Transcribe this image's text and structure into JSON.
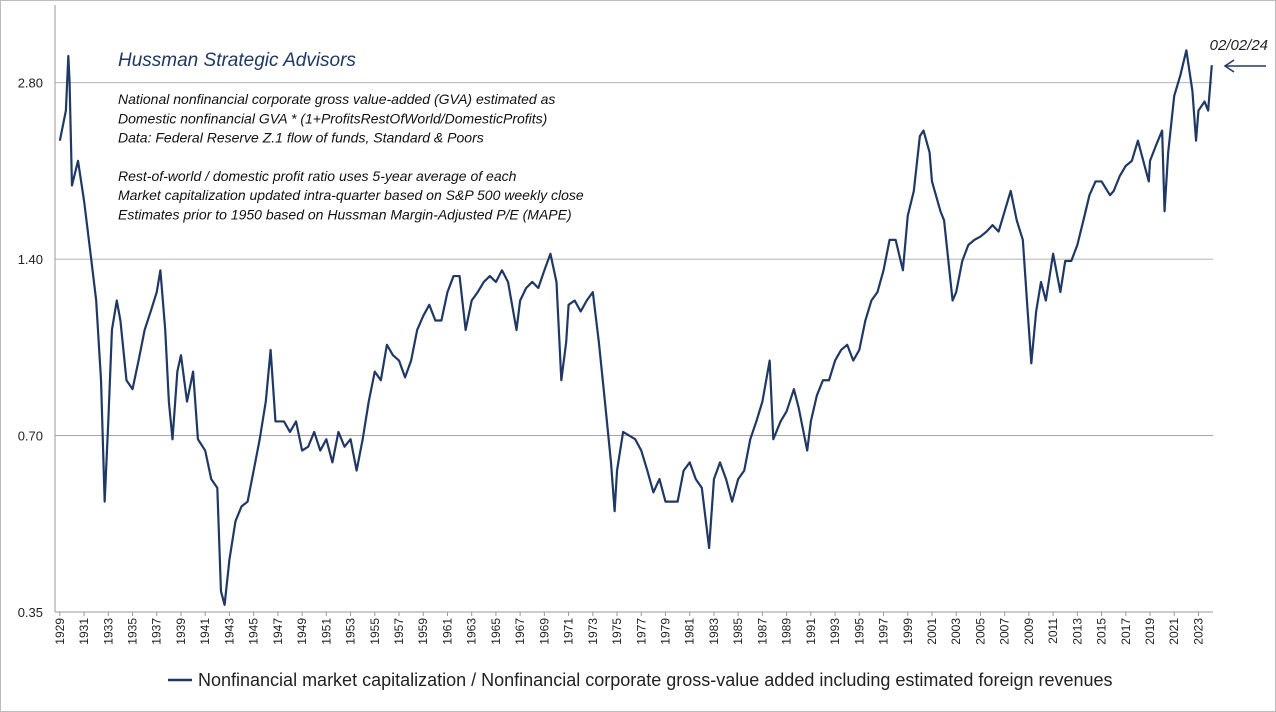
{
  "chart_data": {
    "type": "line",
    "title": "Hussman Strategic Advisors",
    "notes": [
      [
        "National nonfinancial corporate gross value-added (GVA) estimated as",
        "Domestic nonfinancial GVA * (1+ProfitsRestOfWorld/DomesticProfits)",
        "Data: Federal Reserve Z.1 flow of funds, Standard & Poors"
      ],
      [
        "Rest-of-world / domestic profit ratio uses 5-year average of each",
        "Market capitalization updated intra-quarter based on S&P 500 weekly close",
        "Estimates prior to 1950 based on Hussman Margin-Adjusted P/E (MAPE)"
      ]
    ],
    "end_label": "02/02/24",
    "yscale": "log",
    "grid": true,
    "ylim": [
      0.35,
      3.8
    ],
    "yticks": [
      0.35,
      {
        "value": 0.7,
        "label": "0.70"
      },
      {
        "value": 1.4,
        "label": "1.40"
      },
      {
        "value": 2.8,
        "label": "2.80"
      }
    ],
    "xlim": [
      1928.6,
      2024.2
    ],
    "xticks": [
      1929,
      1931,
      1933,
      1935,
      1937,
      1939,
      1941,
      1943,
      1945,
      1947,
      1949,
      1951,
      1953,
      1955,
      1957,
      1959,
      1961,
      1963,
      1965,
      1967,
      1969,
      1971,
      1973,
      1975,
      1977,
      1979,
      1981,
      1983,
      1985,
      1987,
      1989,
      1991,
      1993,
      1995,
      1997,
      1999,
      2001,
      2003,
      2005,
      2007,
      2009,
      2011,
      2013,
      2015,
      2017,
      2019,
      2021,
      2023
    ],
    "legend": "bottom",
    "x": [
      1929.0,
      1929.5,
      1929.7,
      1929.8,
      1930.0,
      1930.5,
      1931.0,
      1931.5,
      1932.0,
      1932.4,
      1932.7,
      1933.0,
      1933.3,
      1933.7,
      1934.0,
      1934.5,
      1935.0,
      1935.5,
      1936.0,
      1936.5,
      1937.0,
      1937.3,
      1937.7,
      1938.0,
      1938.3,
      1938.7,
      1939.0,
      1939.5,
      1940.0,
      1940.4,
      1941.0,
      1941.5,
      1942.0,
      1942.3,
      1942.6,
      1943.0,
      1943.5,
      1944.0,
      1944.5,
      1945.0,
      1945.5,
      1946.0,
      1946.4,
      1946.8,
      1947.5,
      1948.0,
      1948.5,
      1949.0,
      1949.5,
      1950.0,
      1950.5,
      1951.0,
      1951.5,
      1952.0,
      1952.5,
      1953.0,
      1953.5,
      1954.0,
      1954.5,
      1955.0,
      1955.5,
      1956.0,
      1956.5,
      1957.0,
      1957.5,
      1958.0,
      1958.5,
      1959.0,
      1959.5,
      1960.0,
      1960.5,
      1961.0,
      1961.5,
      1962.0,
      1962.5,
      1963.0,
      1963.5,
      1964.0,
      1964.5,
      1965.0,
      1965.5,
      1966.0,
      1966.7,
      1967.0,
      1967.5,
      1968.0,
      1968.5,
      1969.0,
      1969.5,
      1970.0,
      1970.4,
      1970.8,
      1971.0,
      1971.5,
      1972.0,
      1972.5,
      1973.0,
      1973.5,
      1974.0,
      1974.5,
      1974.8,
      1975.0,
      1975.5,
      1976.0,
      1976.5,
      1977.0,
      1977.5,
      1978.0,
      1978.5,
      1979.0,
      1979.5,
      1980.0,
      1980.5,
      1981.0,
      1981.5,
      1982.0,
      1982.6,
      1983.0,
      1983.5,
      1984.0,
      1984.5,
      1985.0,
      1985.5,
      1986.0,
      1986.5,
      1987.0,
      1987.6,
      1987.9,
      1988.5,
      1989.0,
      1989.6,
      1990.0,
      1990.7,
      1991.0,
      1991.5,
      1992.0,
      1992.5,
      1993.0,
      1993.5,
      1994.0,
      1994.5,
      1995.0,
      1995.5,
      1996.0,
      1996.5,
      1997.0,
      1997.5,
      1998.0,
      1998.6,
      1999.0,
      1999.5,
      2000.0,
      2000.3,
      2000.8,
      2001.0,
      2001.7,
      2002.0,
      2002.7,
      2003.0,
      2003.5,
      2004.0,
      2004.5,
      2005.0,
      2005.5,
      2006.0,
      2006.5,
      2007.0,
      2007.5,
      2008.0,
      2008.5,
      2008.9,
      2009.2,
      2009.6,
      2010.0,
      2010.4,
      2011.0,
      2011.6,
      2012.0,
      2012.5,
      2013.0,
      2013.5,
      2014.0,
      2014.5,
      2015.0,
      2015.7,
      2016.0,
      2016.5,
      2017.0,
      2017.5,
      2018.0,
      2018.9,
      2019.0,
      2019.5,
      2020.0,
      2020.2,
      2020.5,
      2021.0,
      2021.5,
      2022.0,
      2022.5,
      2022.8,
      2023.0,
      2023.5,
      2023.8,
      2024.1
    ],
    "series": [
      {
        "name": "Nonfinancial market capitalization / Nonfinancial corporate gross-value added including estimated foreign revenues",
        "color": "#203864",
        "values": [
          2.23,
          2.51,
          3.11,
          2.82,
          1.87,
          2.06,
          1.76,
          1.45,
          1.19,
          0.87,
          0.54,
          0.74,
          1.06,
          1.19,
          1.1,
          0.87,
          0.84,
          0.94,
          1.06,
          1.14,
          1.23,
          1.34,
          1.06,
          0.8,
          0.69,
          0.9,
          0.96,
          0.8,
          0.9,
          0.69,
          0.66,
          0.59,
          0.57,
          0.38,
          0.36,
          0.43,
          0.5,
          0.53,
          0.54,
          0.61,
          0.69,
          0.8,
          0.98,
          0.74,
          0.74,
          0.71,
          0.74,
          0.66,
          0.67,
          0.71,
          0.66,
          0.69,
          0.63,
          0.71,
          0.67,
          0.69,
          0.61,
          0.69,
          0.8,
          0.9,
          0.87,
          1.0,
          0.96,
          0.94,
          0.88,
          0.94,
          1.06,
          1.12,
          1.17,
          1.1,
          1.1,
          1.23,
          1.31,
          1.31,
          1.06,
          1.19,
          1.23,
          1.28,
          1.31,
          1.28,
          1.34,
          1.28,
          1.06,
          1.19,
          1.25,
          1.28,
          1.25,
          1.34,
          1.43,
          1.28,
          0.87,
          1.01,
          1.17,
          1.19,
          1.14,
          1.19,
          1.23,
          1.01,
          0.8,
          0.63,
          0.52,
          0.61,
          0.71,
          0.7,
          0.69,
          0.66,
          0.61,
          0.56,
          0.59,
          0.54,
          0.54,
          0.54,
          0.61,
          0.63,
          0.59,
          0.57,
          0.45,
          0.59,
          0.63,
          0.59,
          0.54,
          0.59,
          0.61,
          0.69,
          0.74,
          0.8,
          0.94,
          0.69,
          0.74,
          0.77,
          0.84,
          0.78,
          0.66,
          0.74,
          0.82,
          0.87,
          0.87,
          0.94,
          0.98,
          1.0,
          0.94,
          0.98,
          1.1,
          1.19,
          1.23,
          1.34,
          1.51,
          1.51,
          1.34,
          1.66,
          1.83,
          2.27,
          2.32,
          2.13,
          1.9,
          1.69,
          1.63,
          1.19,
          1.23,
          1.39,
          1.48,
          1.51,
          1.53,
          1.56,
          1.6,
          1.56,
          1.69,
          1.83,
          1.63,
          1.51,
          1.14,
          0.93,
          1.14,
          1.28,
          1.19,
          1.43,
          1.23,
          1.39,
          1.39,
          1.48,
          1.63,
          1.8,
          1.9,
          1.9,
          1.8,
          1.83,
          1.94,
          2.02,
          2.06,
          2.23,
          1.9,
          2.06,
          2.19,
          2.32,
          1.69,
          2.13,
          2.66,
          2.88,
          3.18,
          2.71,
          2.23,
          2.51,
          2.6,
          2.51,
          3.0
        ]
      }
    ]
  }
}
